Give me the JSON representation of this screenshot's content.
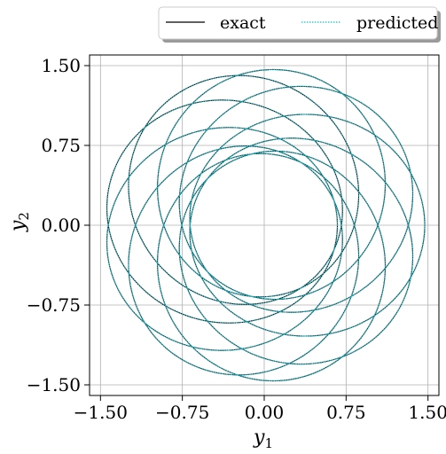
{
  "chart_data": {
    "type": "line",
    "title": "",
    "xlabel": "y1",
    "ylabel": "y2",
    "xlim": [
      -1.6,
      1.6
    ],
    "ylim": [
      -1.6,
      1.6
    ],
    "xticks": [
      -1.5,
      -0.75,
      0.0,
      0.75,
      1.5
    ],
    "yticks": [
      -1.5,
      -0.75,
      0.0,
      0.75,
      1.5
    ],
    "tick_labels": [
      "−1.50",
      "−0.75",
      "0.00",
      "0.75",
      "1.50"
    ],
    "grid": true,
    "legend_position": "top-right, above plot",
    "series": [
      {
        "name": "exact",
        "style": "solid",
        "color": "#000000",
        "curve": {
          "family": "precessing ellipse (rosette)",
          "r_min": 0.67,
          "r_max": 1.47,
          "loops": 25
        }
      },
      {
        "name": "predicted",
        "style": "dotted",
        "color": "#17becf",
        "curve": {
          "family": "precessing ellipse (rosette)",
          "r_min": 0.67,
          "r_max": 1.47,
          "loops": 25
        }
      }
    ]
  }
}
